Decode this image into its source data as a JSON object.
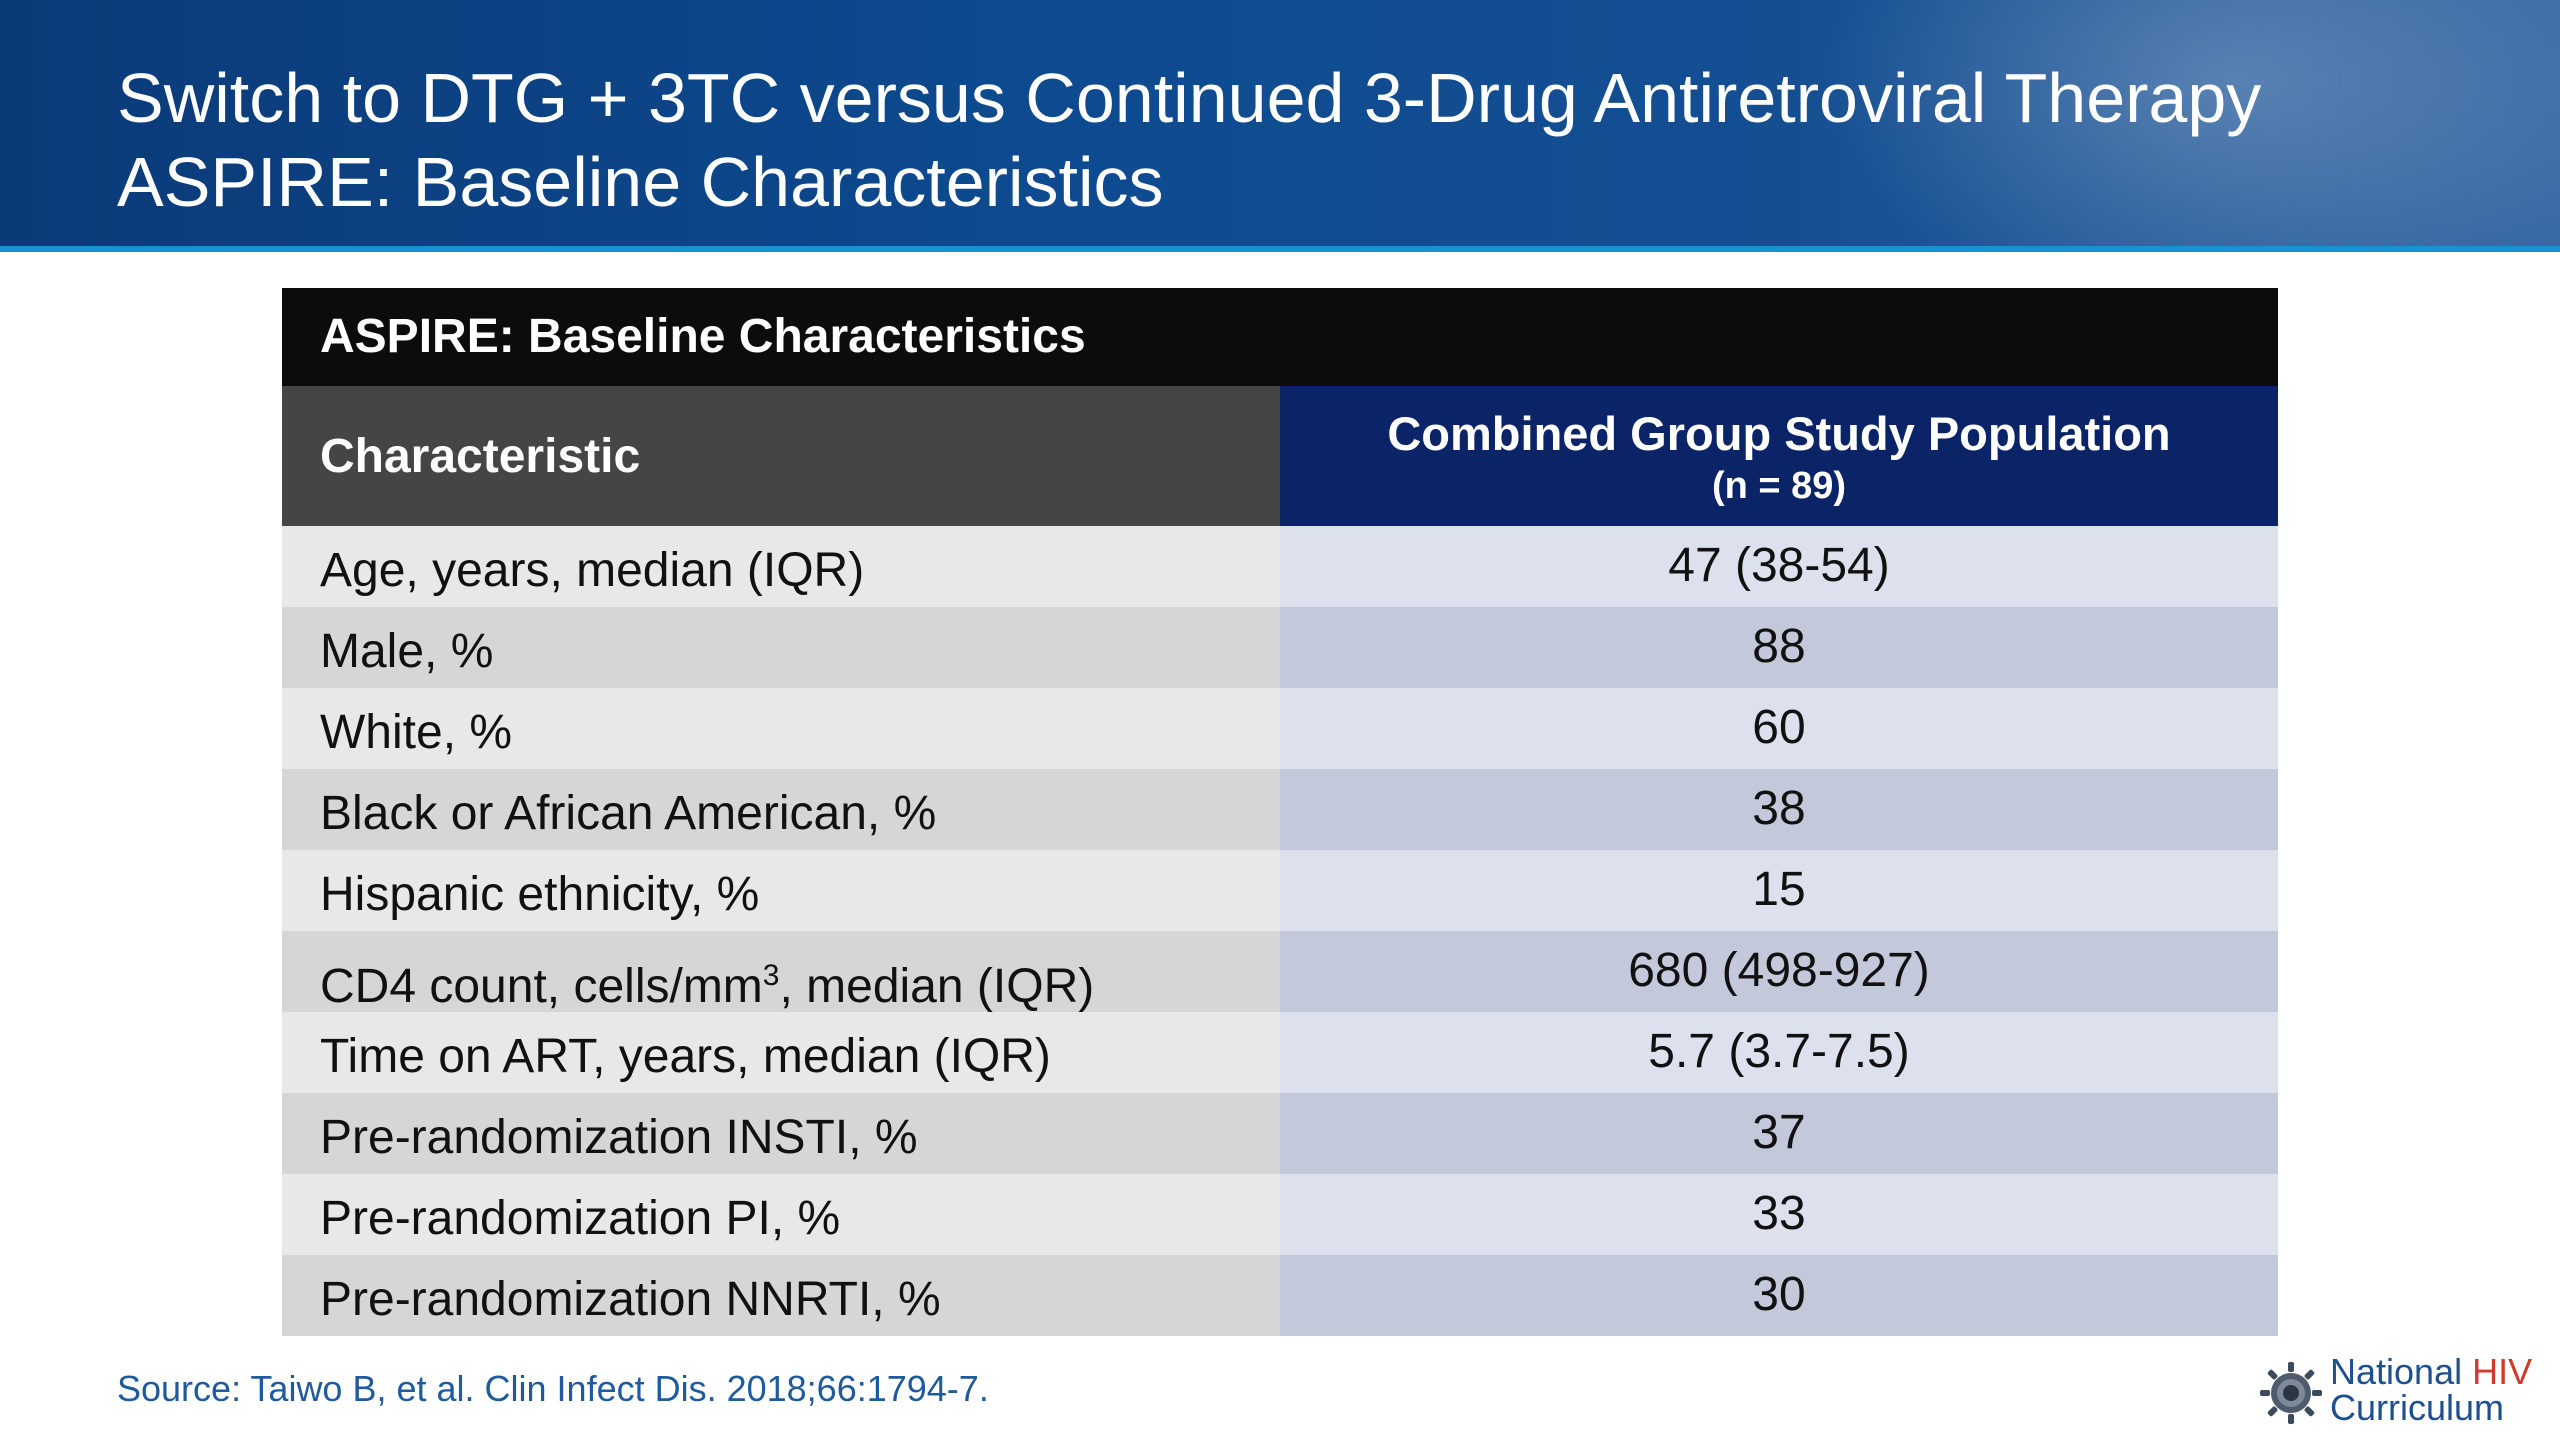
{
  "header": {
    "title_line1": "Switch to DTG + 3TC versus Continued 3-Drug Antiretroviral Therapy",
    "title_line2": "ASPIRE: Baseline Characteristics"
  },
  "table": {
    "title": "ASPIRE: Baseline Characteristics",
    "col1_header": "Characteristic",
    "col2_header": "Combined Group Study Population",
    "col2_subheader": "(n = 89)",
    "rows": [
      {
        "label": "Age, years, median (IQR)",
        "value": "47 (38-54)"
      },
      {
        "label": "Male, %",
        "value": "88"
      },
      {
        "label": "White, %",
        "value": "60"
      },
      {
        "label": "Black or African American, %",
        "value": "38"
      },
      {
        "label": "Hispanic ethnicity, %",
        "value": "15"
      },
      {
        "label_pre": "CD4 count, cells/mm",
        "label_sup": "3",
        "label_post": ", median (IQR)",
        "value": "680 (498-927)"
      },
      {
        "label": "Time on ART, years, median (IQR)",
        "value": "5.7 (3.7-7.5)"
      },
      {
        "label": "Pre-randomization INSTI, %",
        "value": "37"
      },
      {
        "label": "Pre-randomization PI, %",
        "value": "33"
      },
      {
        "label": "Pre-randomization NNRTI, %",
        "value": "30"
      }
    ]
  },
  "footer": {
    "source": "Source: Taiwo B, et al. Clin Infect Dis. 2018;66:1794-7.",
    "logo_line1_a": "National ",
    "logo_line1_b": "HIV",
    "logo_line2": "Curriculum",
    "logo_icon": "globe-gear-icon"
  },
  "colors": {
    "header_blue": "#0d4a8f",
    "table_title_bg": "#0c0c0c",
    "col1_header_bg": "#454545",
    "col2_header_bg": "#0b2467",
    "source_text": "#1e5a9e",
    "logo_hiv": "#d0392b"
  }
}
